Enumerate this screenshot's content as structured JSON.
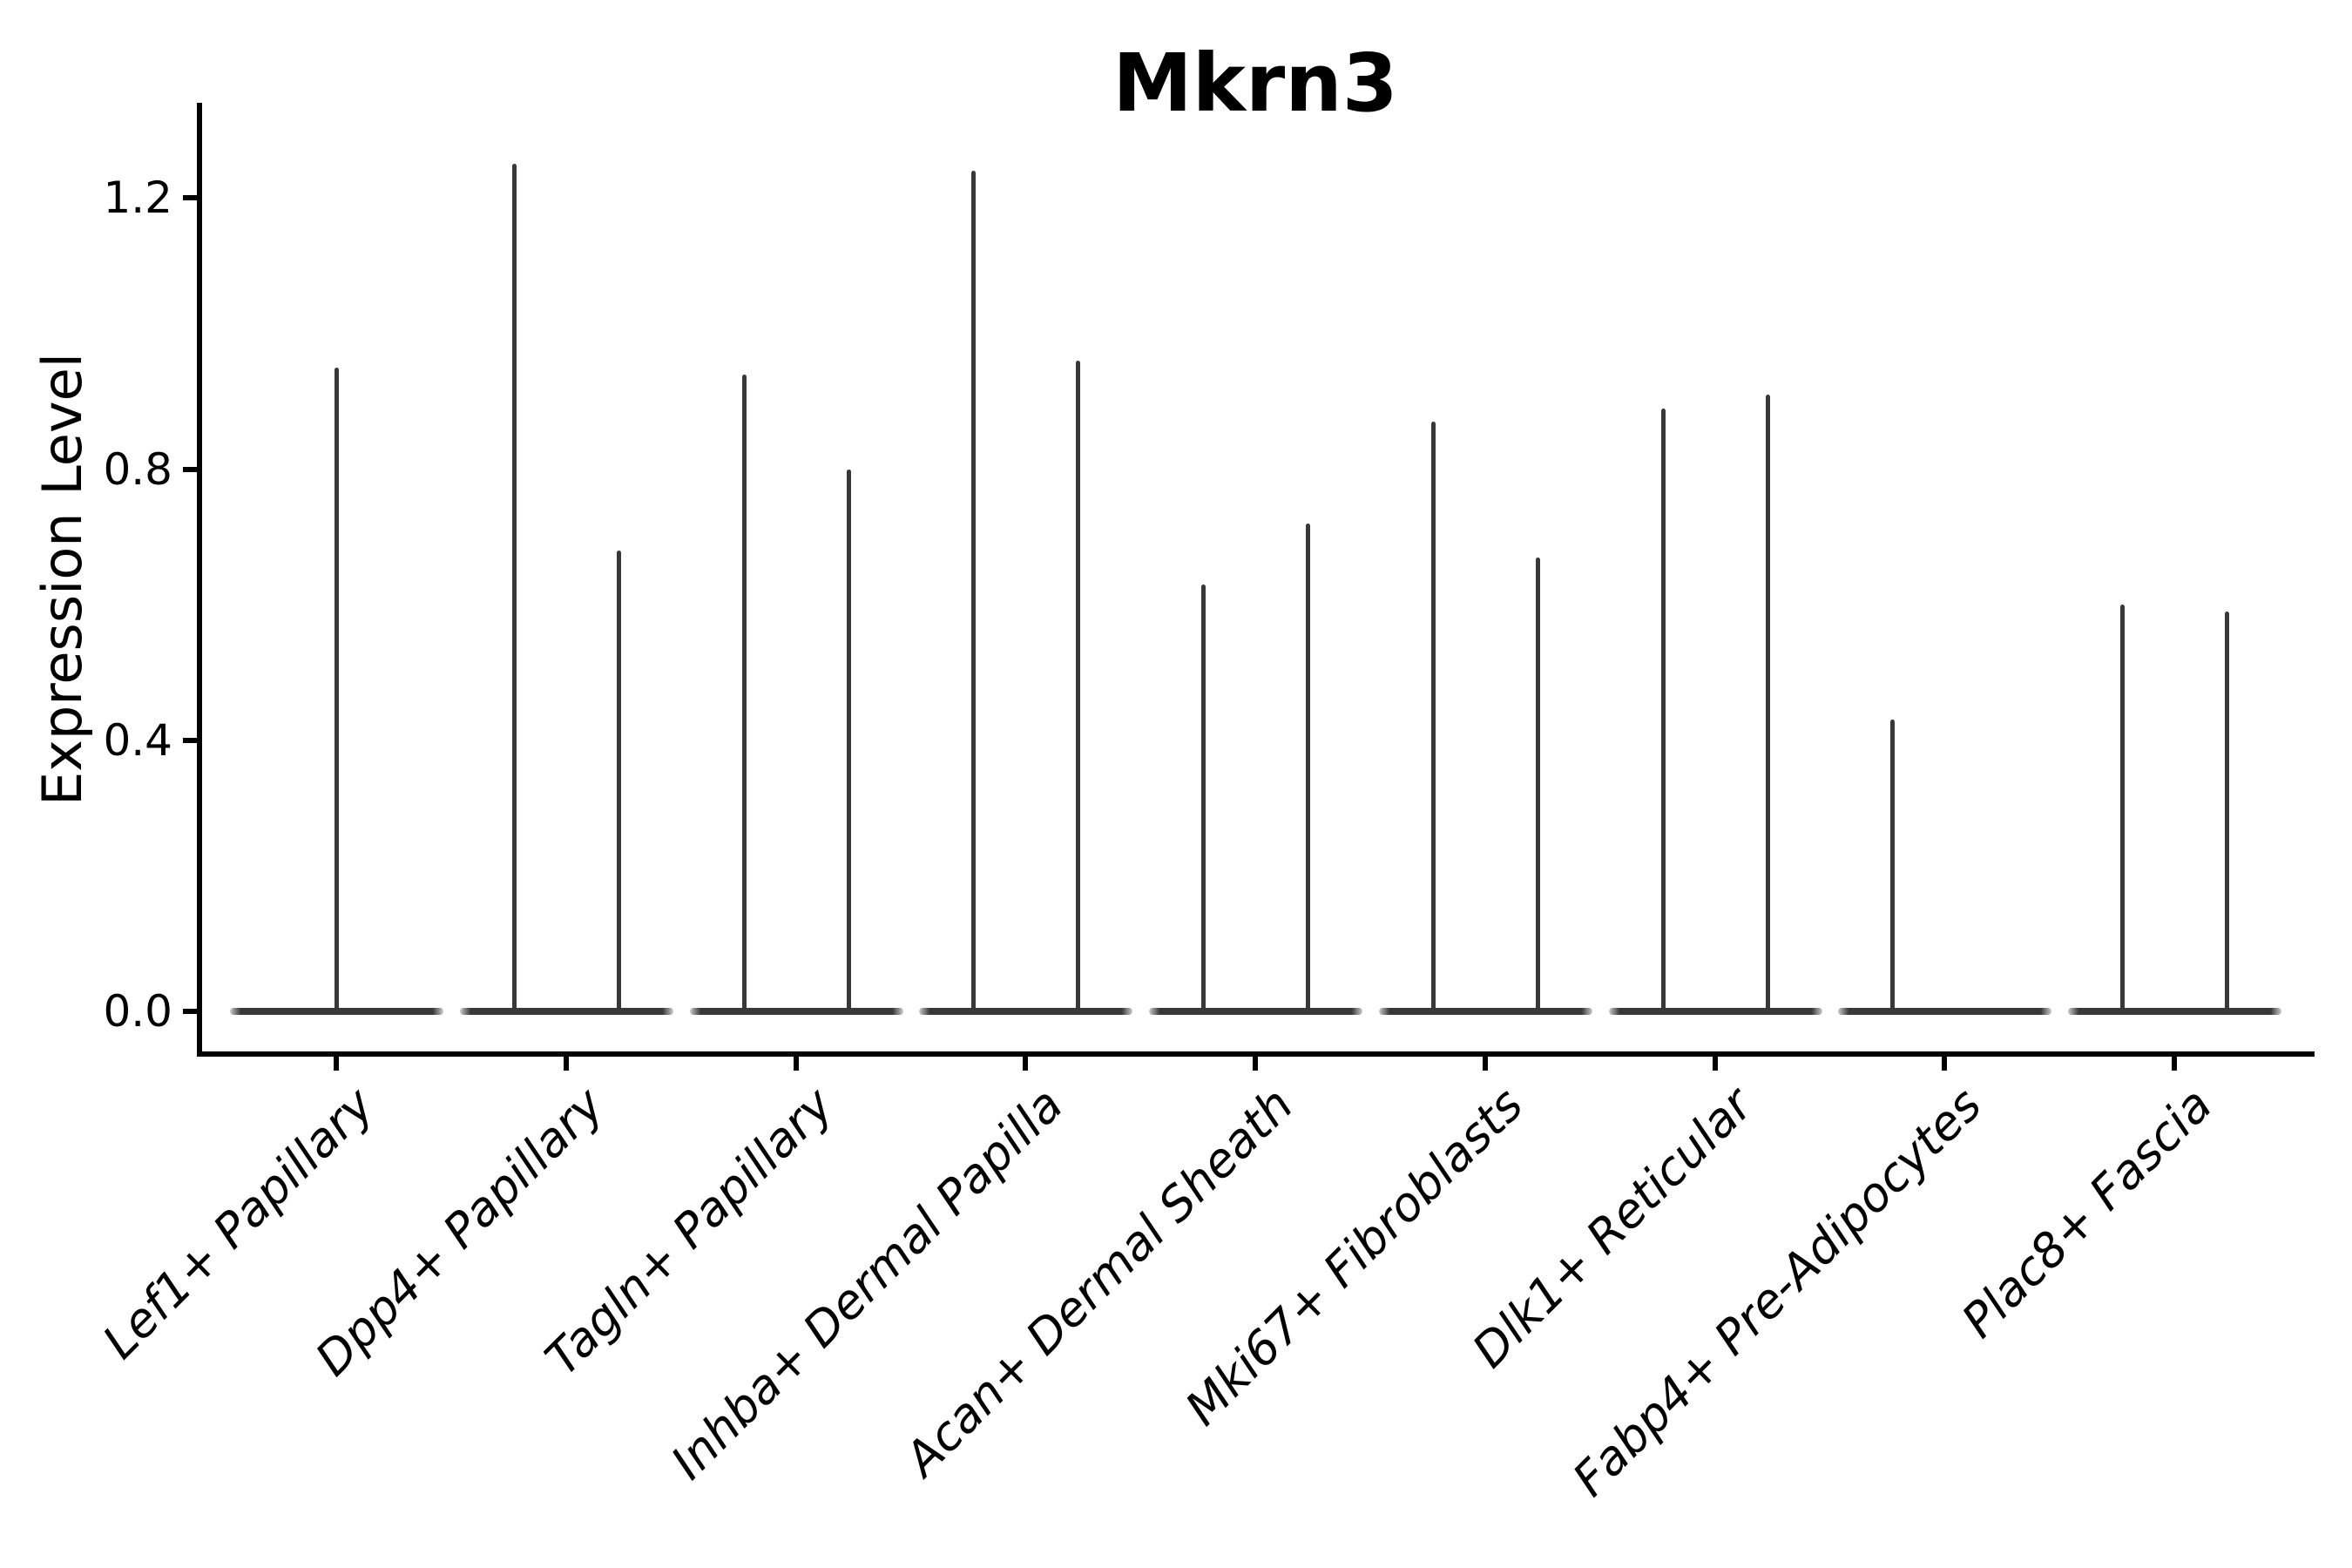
{
  "figure": {
    "title": "Mkrn3",
    "ylabel": "Expression Level"
  },
  "chart_data": {
    "type": "violin",
    "title": "Mkrn3",
    "xlabel": "",
    "ylabel": "Expression Level",
    "yticks": [
      "0.0",
      "0.4",
      "0.8",
      "1.2"
    ],
    "ytick_values": [
      0.0,
      0.4,
      0.8,
      1.2
    ],
    "ylim": [
      -0.07,
      1.34
    ],
    "grid": false,
    "legend": null,
    "categories": [
      "Lef1+ Papillary",
      "Dpp4+ Papillary",
      "Tagln+ Papillary",
      "Inhba+ Dermal Papilla",
      "Acan+ Dermal Sheath",
      "Mki67+ Fibroblasts",
      "Dlk1+ Reticular",
      "Fabp4+ Pre-Adipocytes",
      "Plac8+ Fascia"
    ],
    "violins": [
      {
        "category": "Lef1+ Papillary",
        "spikes": [
          {
            "pos": "center",
            "max": 0.95
          }
        ]
      },
      {
        "category": "Dpp4+ Papillary",
        "spikes": [
          {
            "pos": "left",
            "max": 1.25
          },
          {
            "pos": "right",
            "max": 0.68
          }
        ]
      },
      {
        "category": "Tagln+ Papillary",
        "spikes": [
          {
            "pos": "left",
            "max": 0.94
          },
          {
            "pos": "right",
            "max": 0.8
          }
        ]
      },
      {
        "category": "Inhba+ Dermal Papilla",
        "spikes": [
          {
            "pos": "left",
            "max": 1.24
          },
          {
            "pos": "right",
            "max": 0.96
          }
        ]
      },
      {
        "category": "Acan+ Dermal Sheath",
        "spikes": [
          {
            "pos": "left",
            "max": 0.63
          },
          {
            "pos": "right",
            "max": 0.72
          }
        ]
      },
      {
        "category": "Mki67+ Fibroblasts",
        "spikes": [
          {
            "pos": "left",
            "max": 0.87
          },
          {
            "pos": "right",
            "max": 0.67
          }
        ]
      },
      {
        "category": "Dlk1+ Reticular",
        "spikes": [
          {
            "pos": "left",
            "max": 0.89
          },
          {
            "pos": "right",
            "max": 0.91
          }
        ]
      },
      {
        "category": "Fabp4+ Pre-Adipocytes",
        "spikes": [
          {
            "pos": "left",
            "max": 0.43
          }
        ]
      },
      {
        "category": "Plac8+ Fascia",
        "spikes": [
          {
            "pos": "left",
            "max": 0.6
          },
          {
            "pos": "right",
            "max": 0.59
          }
        ]
      }
    ],
    "colors": {
      "violin": "#383838",
      "axis": "#000000",
      "text": "#000000",
      "background": "#ffffff"
    }
  }
}
